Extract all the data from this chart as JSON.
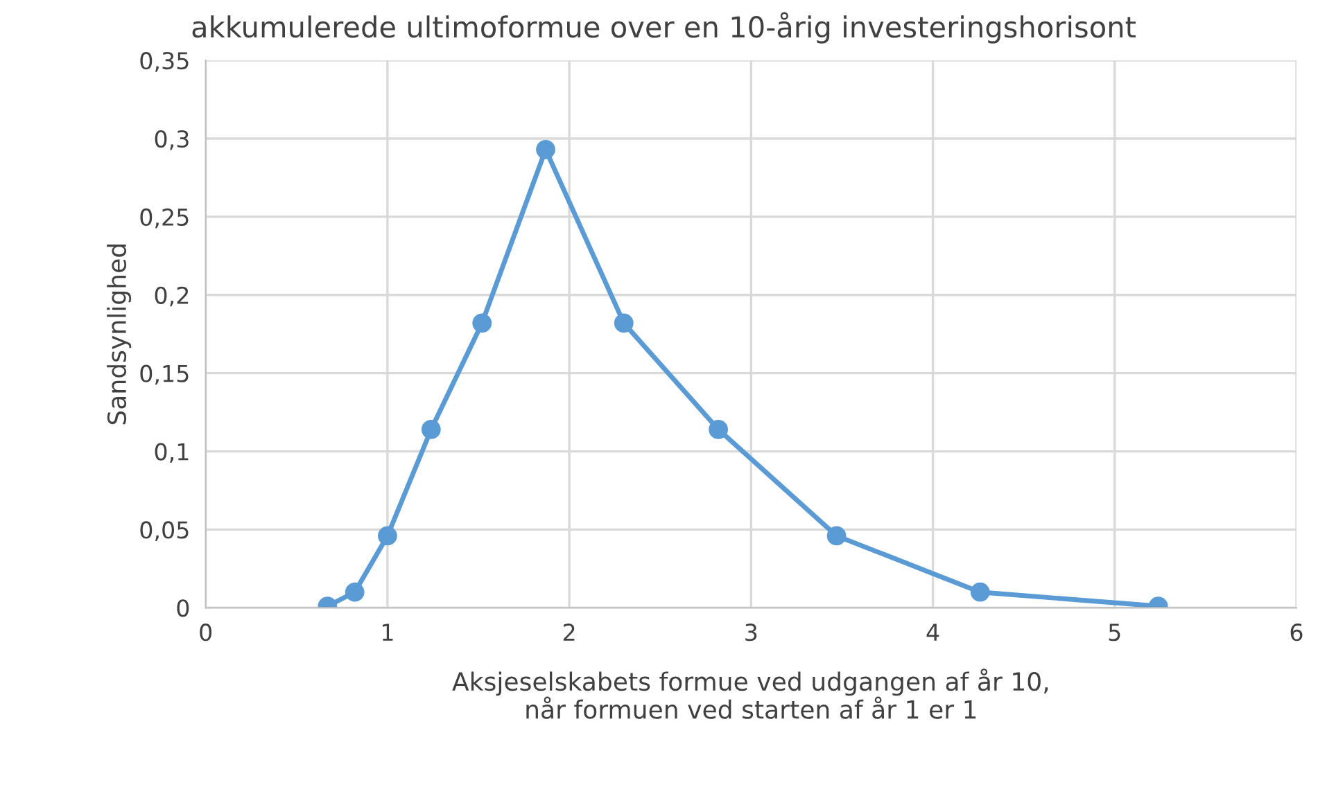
{
  "chart_data": {
    "type": "line",
    "title": "akkumulerede ultimoformue over en 10-årig investeringshorisont",
    "xlabel": "Aksjeselskabets formue ved udgangen af år 10,\nnår formuen ved starten af år 1 er 1",
    "ylabel": "Sandsynlighed",
    "x": [
      0.67,
      0.82,
      1.0,
      1.24,
      1.52,
      1.87,
      2.3,
      2.82,
      3.47,
      4.26,
      5.24
    ],
    "series": [
      {
        "color": "#5b9bd5",
        "values": [
          0.001,
          0.01,
          0.046,
          0.114,
          0.182,
          0.293,
          0.182,
          0.114,
          0.046,
          0.01,
          0.001
        ]
      }
    ],
    "xlim": [
      0,
      6
    ],
    "xticks": [
      0,
      1,
      2,
      3,
      4,
      5,
      6
    ],
    "ylim": [
      0,
      0.35
    ],
    "yticks": [
      {
        "value": 0,
        "label": "0"
      },
      {
        "value": 0.05,
        "label": "0,05"
      },
      {
        "value": 0.1,
        "label": "0,1"
      },
      {
        "value": 0.15,
        "label": "0,15"
      },
      {
        "value": 0.2,
        "label": "0,2"
      },
      {
        "value": 0.25,
        "label": "0,25"
      },
      {
        "value": 0.3,
        "label": "0,3"
      },
      {
        "value": 0.35,
        "label": "0,35"
      }
    ],
    "grid": true,
    "marker": "circle",
    "line_style": "solid"
  }
}
